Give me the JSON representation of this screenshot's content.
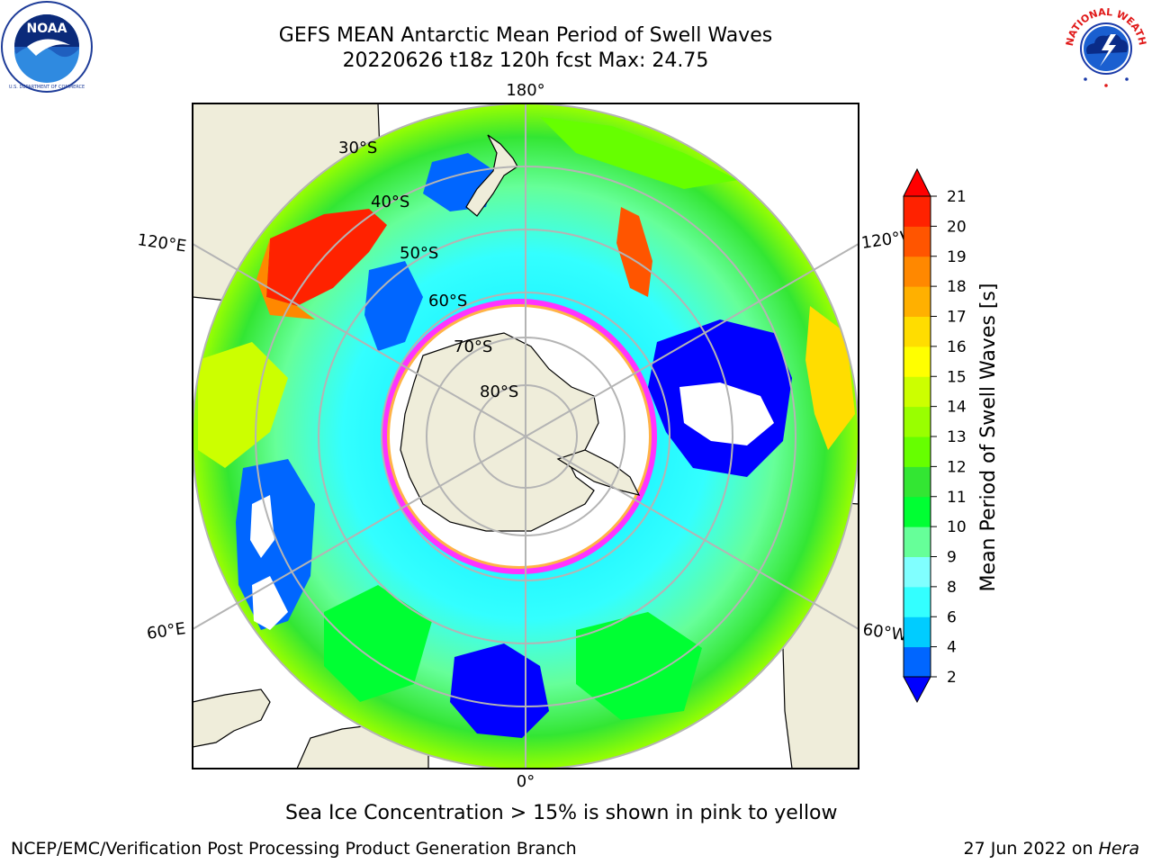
{
  "header": {
    "title": "GEFS MEAN Antarctic Mean Period of Swell Waves",
    "subtitle": "20220626 t18z 120h fcst   Max: 24.75"
  },
  "logos": {
    "left": {
      "name": "NOAA",
      "icon": "noaa-logo",
      "ring_text": "NATIONAL OCEANIC AND ATMOSPHERIC ADMINISTRATION · U.S. DEPARTMENT OF COMMERCE"
    },
    "right": {
      "name": "NATIONAL WEATHER SERVICE",
      "icon": "nws-logo"
    }
  },
  "map": {
    "projection": "south-polar-stereographic",
    "lon_labels": {
      "top": "180°",
      "bottom": "0°",
      "left_upper": "120°E",
      "left_lower": "60°E",
      "right_upper": "120°W",
      "right_lower": "60°W"
    },
    "lat_labels": [
      "30°S",
      "40°S",
      "50°S",
      "60°S",
      "70°S",
      "80°S"
    ],
    "land_color": "#efedda",
    "ice_colors": [
      "#ff33ff",
      "#ffb347",
      "#ffff66"
    ]
  },
  "colorbar": {
    "label": "Mean Period of Swell Waves [s]",
    "ticks": [
      "2",
      "4",
      "6",
      "8",
      "9",
      "10",
      "11",
      "12",
      "13",
      "14",
      "15",
      "16",
      "17",
      "18",
      "19",
      "20",
      "21"
    ],
    "colors": [
      "#0000ff",
      "#0066ff",
      "#00ccff",
      "#33ffff",
      "#80ffff",
      "#66ff99",
      "#00ff33",
      "#33e633",
      "#66ff00",
      "#99ff00",
      "#ccff00",
      "#ffff00",
      "#ffdd00",
      "#ffb000",
      "#ff8800",
      "#ff5500",
      "#ff2200",
      "#ff0000"
    ]
  },
  "footer": {
    "note": "Sea Ice Concentration > 15% is shown in pink to yellow",
    "credit": "NCEP/EMC/Verification Post Processing Product Generation Branch",
    "date": "27 Jun 2022 on",
    "host": "Hera"
  }
}
